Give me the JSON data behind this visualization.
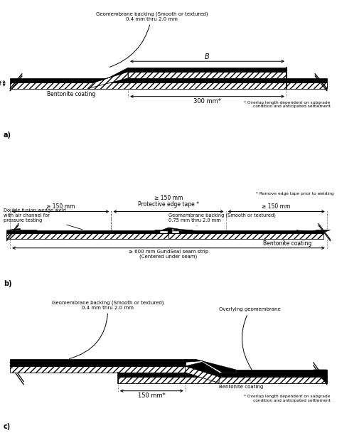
{
  "fig_width": 4.74,
  "fig_height": 6.09,
  "bg_color": "#ffffff",
  "section_a": {
    "label": "a)",
    "geomem_label": "Geomembrane backing (Smooth or textured)\n0.4 mm thru 2.0 mm",
    "bentonite_label": "Bentonite coating",
    "dim_label": "300 mm*",
    "dim_B": "B",
    "footnote": "* Overlap length dependent on subgrade\ncondition and anticipated settlement"
  },
  "section_b": {
    "label": "b)",
    "note": "* Remove edge tape prior to welding",
    "dim_center": "≥ 150 mm",
    "edge_tape": "Protective edge tape *",
    "dim_left": "≥ 150 mm",
    "dim_right": "≥ 150 mm",
    "weld_label": "Double fusion wedge weld\nwith air channel for\npressure testing",
    "geomem_label": "Geomembrane backing (Smooth or textured)\n0.75 mm thru 2.0 mm",
    "bentonite_label": "Bentonite coating",
    "seam_label": "≥ 600 mm GundSeal seam strip\n(Centered under seam)"
  },
  "section_c": {
    "label": "c)",
    "geomem_label": "Geomembrane backing (Smooth or textured)\n0.4 mm thru 2.0 mm",
    "overlay_label": "Overlying geomembrane",
    "bentonite_label": "Bentonite coating",
    "dim_label": "150 mm*",
    "footnote": "* Overlap length dependent on subgrade\ncondition and anticipated settlement"
  }
}
